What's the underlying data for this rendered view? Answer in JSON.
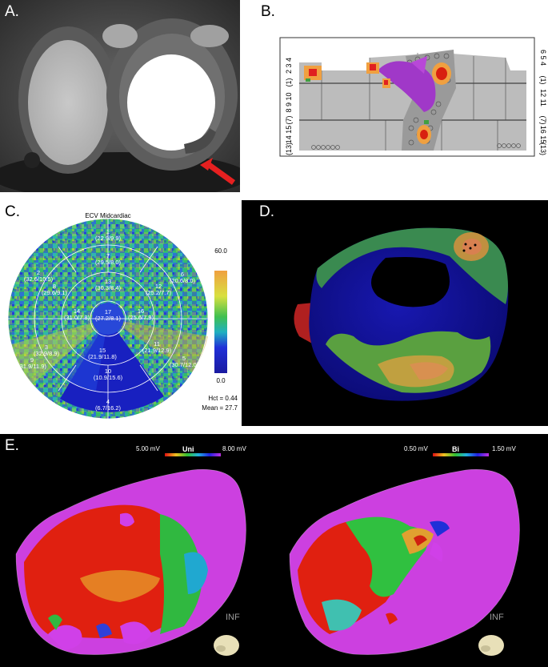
{
  "panels": {
    "a": {
      "label": "A."
    },
    "b": {
      "label": "B.",
      "left_ticks": [
        "2 3 4",
        "(1)",
        "8 9 10",
        "(7)",
        "14 15",
        "(13)"
      ],
      "right_ticks": [
        "6 5 4",
        "(1)",
        "12 11",
        "(7)",
        "16 15",
        "(13)"
      ]
    },
    "c": {
      "label": "C.",
      "title": "ECV Midcardiac",
      "scale_max": "60.0",
      "scale_min": "0.0",
      "hct": "Hct = 0.44",
      "mean": "Mean = 27.7",
      "segments": [
        {
          "num": "1",
          "val": "(22.9/9.9)"
        },
        {
          "num": "7",
          "val": "(29.5/8.0)"
        },
        {
          "num": "13",
          "val": "(30.3/8.4)"
        },
        {
          "num": "6",
          "val": "(20.6/8.0)"
        },
        {
          "num": "12",
          "val": "(25.2/7.7)"
        },
        {
          "num": "2",
          "val": "(32.6/10.5)"
        },
        {
          "num": "8",
          "val": "(29.6/9.1)"
        },
        {
          "num": "14",
          "val": "(31.0/7.8)"
        },
        {
          "num": "17",
          "val": "(27.2/8.1)"
        },
        {
          "num": "16",
          "val": "(25.6/7.9)"
        },
        {
          "num": "3",
          "val": "(32.9/8.9)"
        },
        {
          "num": "9",
          "val": "(31.9/11.9)"
        },
        {
          "num": "15",
          "val": "(21.9/11.8)"
        },
        {
          "num": "11",
          "val": "(21.9/12.9)"
        },
        {
          "num": "5",
          "val": "(30.7/12.0)"
        },
        {
          "num": "10",
          "val": "(10.9/15.6)"
        },
        {
          "num": "4",
          "val": "(6.7/16.2)"
        }
      ]
    },
    "d": {
      "label": "D."
    },
    "e": {
      "label": "E.",
      "uni": {
        "min": "5.00 mV",
        "name": "Uni",
        "max": "8.00 mV",
        "orient": "INF"
      },
      "bi": {
        "min": "0.50 mV",
        "name": "Bi",
        "max": "1.50 mV",
        "orient": "INF"
      }
    }
  },
  "colors": {
    "scar_blue": "#1a22c8",
    "healthy_magenta": "#d040e8",
    "low_red": "#e02010",
    "mid_green": "#40c040",
    "orange": "#f0a030"
  }
}
